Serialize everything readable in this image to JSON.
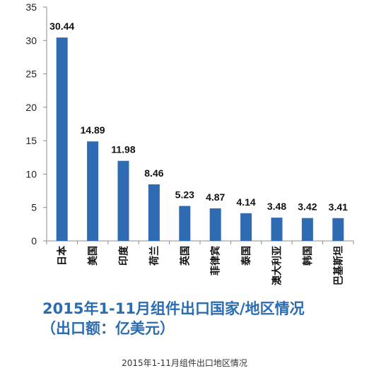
{
  "chart_data": {
    "type": "bar",
    "categories": [
      "日本",
      "美国",
      "印度",
      "荷兰",
      "英国",
      "菲律宾",
      "泰国",
      "澳大利亚",
      "韩国",
      "巴基斯坦"
    ],
    "values": [
      30.44,
      14.89,
      11.98,
      8.46,
      5.23,
      4.87,
      4.14,
      3.48,
      3.42,
      3.41
    ],
    "data_labels": [
      "30.44",
      "14.89",
      "11.98",
      "8.46",
      "5.23",
      "4.87",
      "4.14",
      "3.48",
      "3.42",
      "3.41"
    ],
    "title": "2015年1-11月组件出口国家/地区情况",
    "subtitle": "（出口额：亿美元）",
    "ylim": [
      0,
      35
    ],
    "yticks": [
      0,
      5,
      10,
      15,
      20,
      25,
      30,
      35
    ],
    "grid": false,
    "bar_color": "#2e6bb3",
    "axis_color": "#8c8c8c"
  },
  "caption": "2015年1-11月组件出口地区情况"
}
